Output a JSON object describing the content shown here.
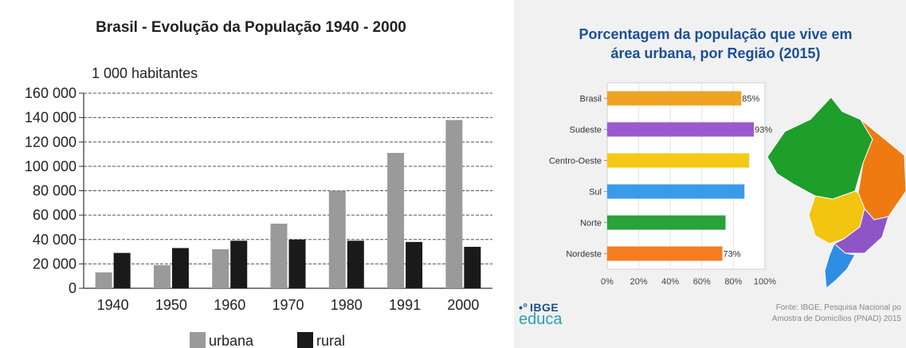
{
  "chart_data": [
    {
      "type": "bar",
      "title": "Brasil - Evolução da População 1940 - 2000",
      "ylabel": "1 000 habitantes",
      "xlabel": "",
      "categories": [
        "1940",
        "1950",
        "1960",
        "1970",
        "1980",
        "1991",
        "2000"
      ],
      "series": [
        {
          "name": "urbana",
          "color": "#9a9a9a",
          "values": [
            13000,
            19000,
            32000,
            53000,
            80000,
            111000,
            138000
          ]
        },
        {
          "name": "rural",
          "color": "#1a1a1a",
          "values": [
            29000,
            33000,
            39000,
            40000,
            39000,
            38000,
            34000
          ]
        }
      ],
      "ylim": [
        0,
        160000
      ],
      "yticks": [
        "0",
        "20 000",
        "40 000",
        "60 000",
        "80 000",
        "100 000",
        "120 000",
        "140 000",
        "160 000"
      ],
      "grid": true,
      "legend": "bottom"
    },
    {
      "type": "bar",
      "orientation": "horizontal",
      "title": "Porcentagem da população que vive em área urbana, por Região (2015)",
      "title_lines": [
        "Porcentagem da população que vive em",
        "área urbana, por Região (2015)"
      ],
      "categories": [
        "Brasil",
        "Sudeste",
        "Centro-Oeste",
        "Sul",
        "Norte",
        "Nordeste"
      ],
      "values": [
        85,
        93,
        90,
        87,
        75,
        73
      ],
      "data_labels": [
        "85%",
        "93%",
        "",
        "",
        "",
        "73%"
      ],
      "colors": [
        "#f0a323",
        "#9b59d0",
        "#f7c915",
        "#3b9be8",
        "#27a33a",
        "#f57c1f"
      ],
      "xlim": [
        0,
        100
      ],
      "xticks": [
        "0%",
        "20%",
        "40%",
        "60%",
        "80%",
        "100%"
      ],
      "title_color": "#1c4f95"
    }
  ],
  "logo": {
    "top": "IBGE",
    "bottom": "educa"
  },
  "source_lines": [
    "Fonte: IBGE, Pesquisa Nacional po",
    "Amostra de Domicílios (PNAD) 2015"
  ],
  "map": {
    "colors": {
      "north": "#1e9e2a",
      "northeast": "#f07a12",
      "center_west": "#f2c511",
      "southeast": "#8e55c9",
      "south": "#2f8ee3"
    }
  }
}
